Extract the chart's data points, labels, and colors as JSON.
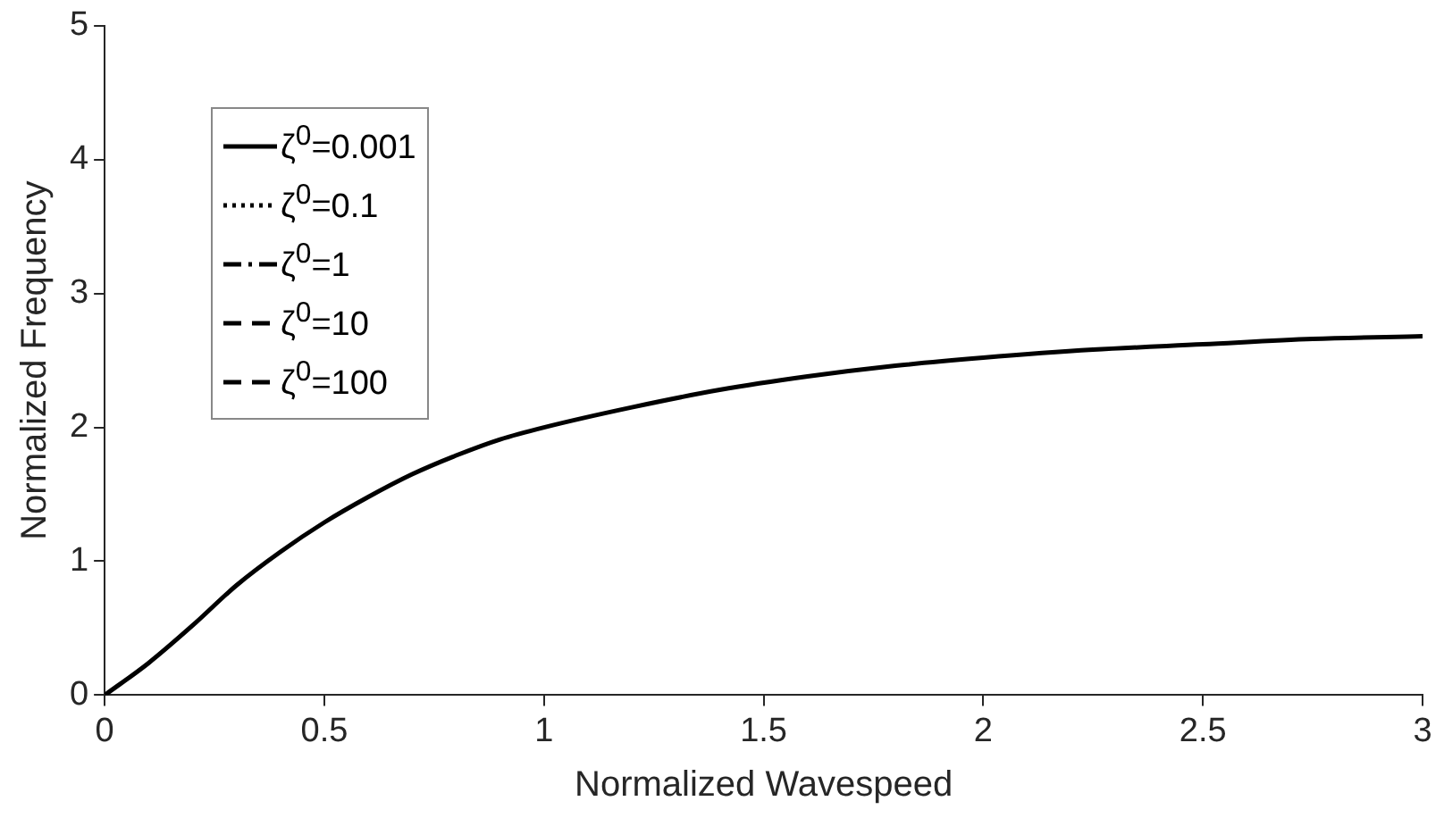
{
  "chart_data": {
    "type": "line",
    "xlabel": "Normalized Wavespeed",
    "ylabel": "Normalized Frequency",
    "x": [
      0,
      0.1,
      0.2,
      0.3,
      0.4,
      0.5,
      0.6,
      0.7,
      0.8,
      0.9,
      1.0,
      1.2,
      1.4,
      1.6,
      1.8,
      2.0,
      2.25,
      2.5,
      2.75,
      3.0
    ],
    "series": [
      {
        "name": "ζ$^{0}$=0.001",
        "color": "#000000",
        "line_style": "solid",
        "values": [
          0,
          0.24,
          0.52,
          0.82,
          1.07,
          1.29,
          1.48,
          1.65,
          1.79,
          1.91,
          2.0,
          2.15,
          2.28,
          2.38,
          2.46,
          2.52,
          2.58,
          2.62,
          2.66,
          2.68
        ]
      },
      {
        "name": "ζ$^{0}$=0.1",
        "color": "#000000",
        "line_style": "dotted",
        "values": [
          null,
          null,
          null,
          null,
          null,
          null,
          null,
          null,
          null,
          null,
          null,
          null,
          null,
          null,
          null,
          null,
          null,
          null,
          null,
          null
        ]
      },
      {
        "name": "ζ$^{0}$=1",
        "color": "#000000",
        "line_style": "dashdot",
        "values": [
          null,
          null,
          null,
          null,
          null,
          null,
          null,
          null,
          null,
          null,
          null,
          null,
          null,
          null,
          null,
          null,
          null,
          null,
          null,
          null
        ]
      },
      {
        "name": "ζ$^{0}$=10",
        "color": "#000000",
        "line_style": "dashed",
        "values": [
          null,
          null,
          null,
          null,
          null,
          null,
          null,
          null,
          null,
          null,
          null,
          null,
          null,
          null,
          null,
          null,
          null,
          null,
          null,
          null
        ]
      },
      {
        "name": "ζ$^{0}$=100",
        "color": "#000000",
        "line_style": "dashed",
        "values": [
          null,
          null,
          null,
          null,
          null,
          null,
          null,
          null,
          null,
          null,
          null,
          null,
          null,
          null,
          null,
          null,
          null,
          null,
          null,
          null
        ]
      }
    ],
    "xlim": [
      0,
      3
    ],
    "xticks": [
      0,
      0.5,
      1,
      1.5,
      2,
      2.5,
      3
    ],
    "ylim": [
      0,
      5
    ],
    "yticks": [
      0,
      1,
      2,
      3,
      4,
      5
    ],
    "legend": "top left",
    "marker": "none"
  }
}
